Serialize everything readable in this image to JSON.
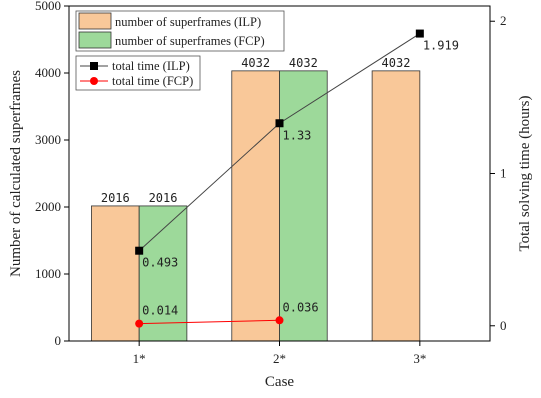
{
  "chart_data": {
    "type": "bar",
    "categories": [
      "1*",
      "2*",
      "3*"
    ],
    "xlabel": "Case",
    "ylabel": "Number of calculated superframes",
    "ylim": [
      0,
      5000
    ],
    "y_ticks": [
      0,
      1000,
      2000,
      3000,
      4000,
      5000
    ],
    "grid": false,
    "bar_series": [
      {
        "name": "number of superframes (ILP)",
        "values": [
          2016,
          4032,
          4032
        ],
        "labels": [
          "2016",
          "4032",
          "4032"
        ],
        "color": "#f9c899"
      },
      {
        "name": "number of superframes (FCP)",
        "values": [
          2016,
          4032,
          null
        ],
        "labels": [
          "2016",
          "4032",
          ""
        ],
        "color": "#9dd99a"
      }
    ],
    "secondary_axis": {
      "ylabel": "Total solving time (hours)",
      "ylim": [
        -0.1,
        2.1
      ],
      "y_ticks": [
        0,
        1,
        2
      ]
    },
    "line_series": [
      {
        "name": "total time (ILP)",
        "values": [
          0.493,
          1.33,
          1.919
        ],
        "labels": [
          "0.493",
          "1.33",
          "1.919"
        ],
        "color": "#000000",
        "marker": "square"
      },
      {
        "name": "total time (FCP)",
        "values": [
          0.014,
          0.036,
          null
        ],
        "labels": [
          "0.014",
          "0.036",
          ""
        ],
        "color": "#ff0000",
        "marker": "circle"
      }
    ],
    "legend_placement": "top-left"
  }
}
